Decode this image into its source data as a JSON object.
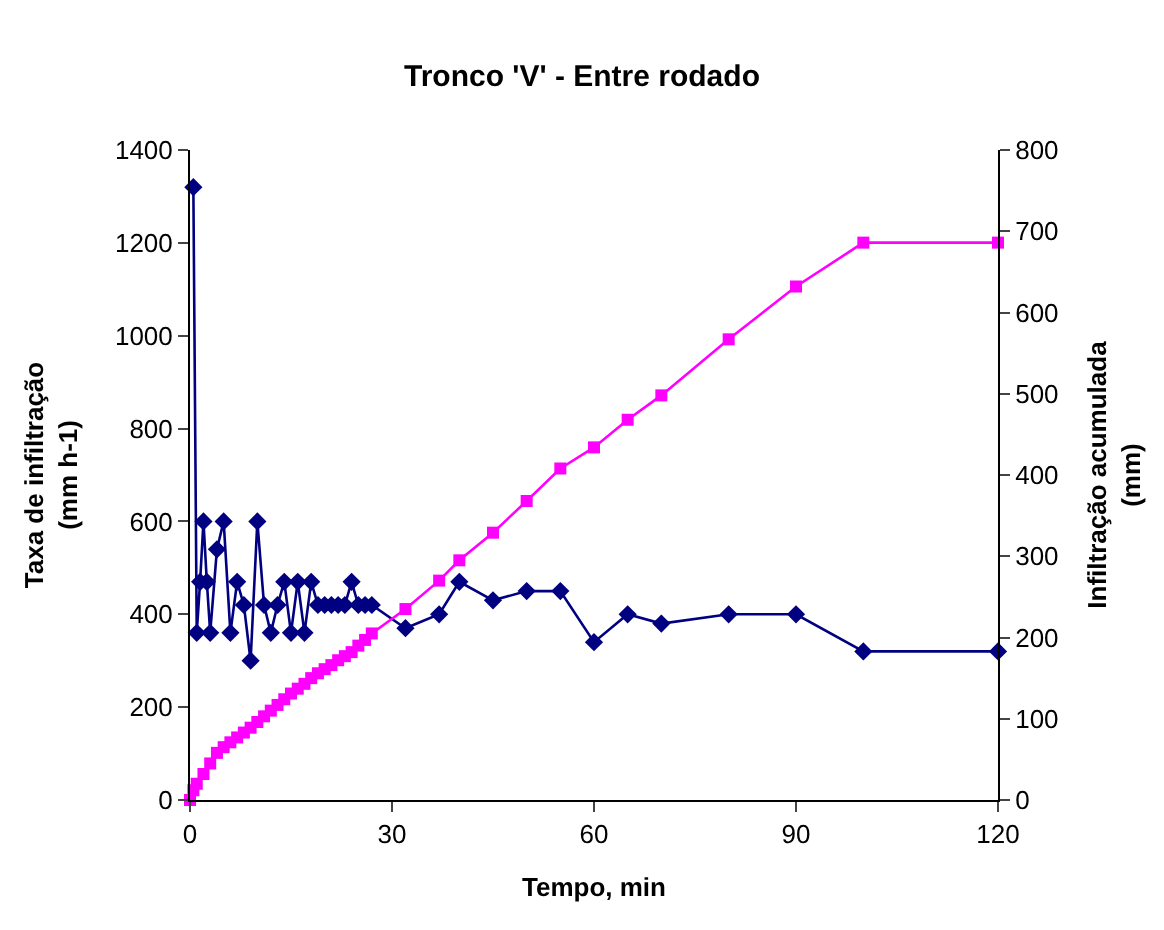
{
  "chart_data": {
    "type": "line",
    "title": "Tronco 'V' - Entre rodado",
    "xlabel": "Tempo, min",
    "ylabel": "Taxa de infiltração\n(mm h-1)",
    "y2label": "Infiltração acumulada\n(mm)",
    "xlim": [
      0,
      120
    ],
    "xticks": [
      0,
      30,
      60,
      90,
      120
    ],
    "ylim": [
      0,
      1400
    ],
    "yticks": [
      0,
      200,
      400,
      600,
      800,
      1000,
      1200,
      1400
    ],
    "y2lim": [
      0,
      800
    ],
    "y2ticks": [
      0,
      100,
      200,
      300,
      400,
      500,
      600,
      700,
      800
    ],
    "series": [
      {
        "color": "#000080",
        "marker": "diamond",
        "x": [
          0.5,
          1,
          1.5,
          2,
          2.5,
          3,
          4,
          5,
          6,
          7,
          8,
          9,
          10,
          11,
          12,
          13,
          14,
          15,
          16,
          17,
          18,
          19,
          20,
          21,
          22,
          23,
          24,
          25,
          26,
          27,
          32,
          37,
          40,
          45,
          50,
          55,
          60,
          65,
          70,
          80,
          90,
          100,
          120
        ],
        "values": [
          1320,
          360,
          470,
          600,
          470,
          360,
          540,
          600,
          360,
          470,
          420,
          300,
          600,
          420,
          360,
          420,
          470,
          360,
          470,
          360,
          470,
          420,
          420,
          420,
          420,
          420,
          470,
          420,
          420,
          420,
          370,
          400,
          470,
          430,
          450,
          450,
          340,
          400,
          380,
          400,
          400,
          320,
          320
        ]
      },
      {
        "color": "#ff00ff",
        "marker": "square",
        "axis": "y2",
        "x": [
          0,
          0.5,
          1,
          2,
          3,
          4,
          5,
          6,
          7,
          8,
          9,
          10,
          11,
          12,
          13,
          14,
          15,
          16,
          17,
          18,
          19,
          20,
          21,
          22,
          23,
          24,
          25,
          26,
          27,
          32,
          37,
          40,
          45,
          50,
          55,
          60,
          65,
          70,
          80,
          90,
          100,
          120
        ],
        "values": [
          0,
          12,
          20,
          32,
          45,
          58,
          65,
          71,
          77,
          83,
          89,
          96,
          103,
          110,
          117,
          124,
          131,
          137,
          143,
          150,
          156,
          161,
          166,
          172,
          177,
          182,
          190,
          197,
          205,
          235,
          270,
          295,
          329,
          368,
          408,
          434,
          468,
          498,
          567,
          632,
          686,
          686
        ]
      }
    ]
  }
}
